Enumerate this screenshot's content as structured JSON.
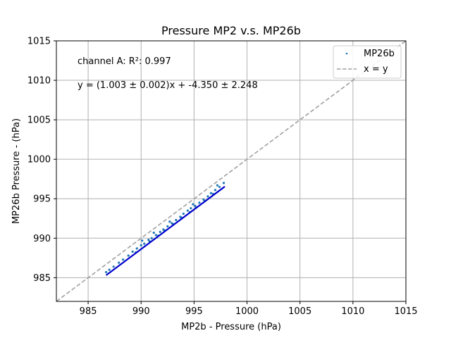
{
  "chart_data": {
    "type": "scatter",
    "title": "Pressure MP2 v.s. MP26b",
    "xlabel": "MP2b - Pressure (hPa)",
    "ylabel": "MP26b Pressure - (hPa)",
    "xlim": [
      982,
      1015
    ],
    "ylim": [
      982,
      1015
    ],
    "xticks": [
      985,
      990,
      995,
      1000,
      1005,
      1010,
      1015
    ],
    "yticks": [
      985,
      990,
      995,
      1000,
      1005,
      1010,
      1015
    ],
    "grid": true,
    "legend_position": "top-right",
    "annotations": [
      "channel A: R²: 0.997",
      "y = (1.003 ± 0.002)x + -4.350 ± 2.248"
    ],
    "series": [
      {
        "name": "MP26b",
        "kind": "scatter",
        "color": "#1f77b4",
        "points": [
          [
            986.7,
            985.7
          ],
          [
            987.0,
            986.0
          ],
          [
            987.4,
            986.4
          ],
          [
            987.9,
            986.9
          ],
          [
            988.3,
            987.3
          ],
          [
            988.8,
            987.8
          ],
          [
            989.2,
            988.3
          ],
          [
            989.6,
            988.7
          ],
          [
            990.0,
            989.1
          ],
          [
            990.3,
            989.3
          ],
          [
            990.7,
            989.8
          ],
          [
            991.0,
            990.0
          ],
          [
            991.4,
            990.4
          ],
          [
            991.8,
            990.8
          ],
          [
            992.1,
            991.1
          ],
          [
            992.5,
            991.5
          ],
          [
            992.9,
            991.9
          ],
          [
            993.3,
            992.3
          ],
          [
            993.7,
            992.7
          ],
          [
            994.0,
            993.1
          ],
          [
            994.4,
            993.5
          ],
          [
            994.7,
            993.8
          ],
          [
            995.1,
            994.1
          ],
          [
            995.5,
            994.5
          ],
          [
            995.9,
            994.9
          ],
          [
            996.3,
            995.3
          ],
          [
            996.6,
            995.7
          ],
          [
            997.0,
            996.1
          ],
          [
            997.4,
            996.5
          ],
          [
            997.8,
            997.0
          ],
          [
            989.5,
            988.2
          ],
          [
            990.8,
            989.6
          ],
          [
            991.6,
            990.3
          ],
          [
            992.2,
            991.0
          ],
          [
            993.0,
            991.8
          ],
          [
            993.8,
            992.6
          ],
          [
            994.6,
            993.3
          ],
          [
            995.2,
            993.9
          ],
          [
            996.0,
            994.7
          ],
          [
            996.8,
            995.6
          ],
          [
            990.1,
            989.7
          ],
          [
            992.7,
            992.1
          ],
          [
            994.9,
            994.3
          ],
          [
            997.2,
            996.7
          ],
          [
            991.2,
            990.7
          ]
        ]
      },
      {
        "name": "x = y",
        "kind": "line",
        "style": "dashed",
        "color": "#a0a0a0",
        "x": [
          982,
          1015
        ],
        "y": [
          982,
          1015
        ]
      },
      {
        "name": "",
        "kind": "line",
        "color": "#0000cc",
        "slope": 1.003,
        "intercept": -4.35,
        "x": [
          986.7,
          997.9
        ]
      }
    ]
  }
}
